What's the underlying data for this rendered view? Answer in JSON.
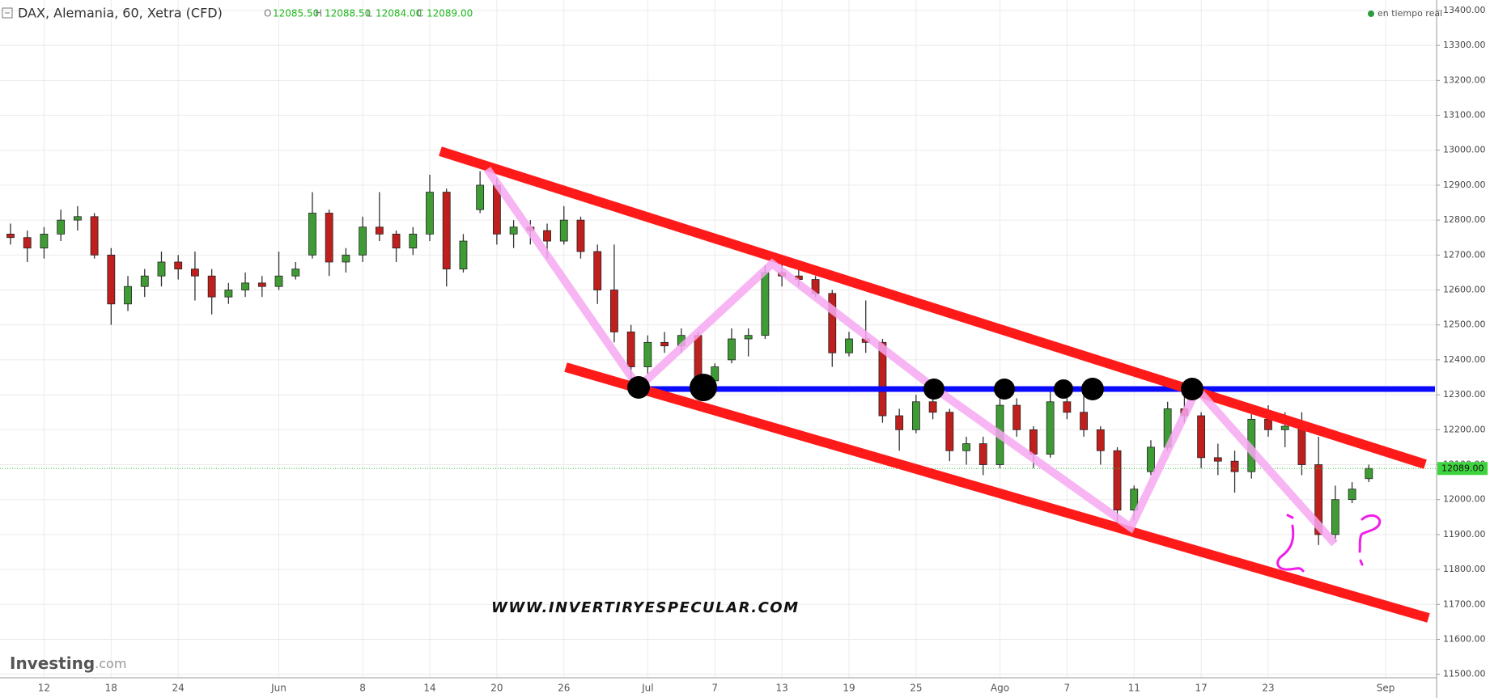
{
  "header": {
    "symbol": "DAX, Alemania, 60, Xetra (CFD)",
    "o_label": "O",
    "o": "12085.50",
    "h_label": "H",
    "h": "12088.50",
    "l_label": "L",
    "l": "12084.00",
    "c_label": "C",
    "c": "12089.00",
    "realtime": "en tiempo real"
  },
  "watermark": "WWW.INVERTIRYESPECULAR.COM",
  "logo": {
    "name": "Investing",
    "suffix": ".com"
  },
  "chart_data": {
    "type": "candlestick",
    "categories": [
      null,
      null,
      "12",
      null,
      null,
      null,
      "18",
      null,
      null,
      null,
      "24",
      null,
      null,
      null,
      null,
      null,
      "Jun",
      null,
      null,
      null,
      null,
      "8",
      null,
      null,
      null,
      "14",
      null,
      null,
      null,
      "20",
      null,
      null,
      null,
      "26",
      null,
      null,
      null,
      null,
      "Jul",
      null,
      null,
      null,
      "7",
      null,
      null,
      null,
      "13",
      null,
      null,
      null,
      "19",
      null,
      null,
      null,
      "25",
      null,
      null,
      null,
      null,
      "Ago",
      null,
      null,
      null,
      "7",
      null,
      null,
      null,
      "11",
      null,
      null,
      null,
      "17",
      null,
      null,
      null,
      "23",
      null,
      null,
      null,
      null,
      null,
      null,
      "Sep"
    ],
    "open": [
      12760,
      12750,
      12720,
      12760,
      12800,
      12810,
      12700,
      12560,
      12610,
      12640,
      12680,
      12660,
      12640,
      12580,
      12600,
      12620,
      12610,
      12640,
      12700,
      12820,
      12680,
      12700,
      12780,
      12760,
      12720,
      12760,
      12880,
      12660,
      12830,
      12900,
      12760,
      12780,
      12770,
      12740,
      12800,
      12710,
      12600,
      12480,
      12380,
      12450,
      12440,
      12470,
      12340,
      12400,
      12460,
      12470,
      12650,
      12640,
      12630,
      12590,
      12420,
      12460,
      12450,
      12240,
      12200,
      12280,
      12250,
      12140,
      12160,
      12100,
      12270,
      12200,
      12130,
      12280,
      12250,
      12200,
      12140,
      11970,
      12080,
      12150,
      12260,
      12240,
      12120,
      12110,
      12080,
      12230,
      12200,
      12210,
      12100,
      11900,
      12000,
      12060,
      null
    ],
    "high": [
      12790,
      12770,
      12780,
      12830,
      12840,
      12820,
      12720,
      12640,
      12660,
      12710,
      12700,
      12710,
      12660,
      12620,
      12650,
      12640,
      12710,
      12680,
      12880,
      12830,
      12720,
      12810,
      12880,
      12770,
      12780,
      12930,
      12890,
      12760,
      12940,
      12920,
      12800,
      12800,
      12790,
      12840,
      12810,
      12730,
      12730,
      12500,
      12470,
      12480,
      12490,
      12480,
      12390,
      12490,
      12490,
      12670,
      12680,
      12660,
      12640,
      12600,
      12480,
      12570,
      12460,
      12260,
      12300,
      12310,
      12260,
      12180,
      12180,
      12320,
      12290,
      12210,
      12310,
      12300,
      12310,
      12210,
      12150,
      12040,
      12170,
      12280,
      12310,
      12250,
      12160,
      12140,
      12250,
      12270,
      12250,
      12250,
      12180,
      12040,
      12050,
      12100,
      null
    ],
    "low": [
      12730,
      12680,
      12690,
      12740,
      12770,
      12690,
      12500,
      12540,
      12580,
      12610,
      12630,
      12570,
      12530,
      12560,
      12580,
      12580,
      12600,
      12630,
      12690,
      12640,
      12650,
      12680,
      12740,
      12680,
      12700,
      12740,
      12610,
      12650,
      12820,
      12730,
      12720,
      12730,
      12690,
      12730,
      12690,
      12560,
      12450,
      12310,
      12360,
      12420,
      12420,
      12310,
      12330,
      12390,
      12410,
      12460,
      12610,
      12610,
      12580,
      12380,
      12410,
      12420,
      12220,
      12140,
      12190,
      12230,
      12110,
      12100,
      12070,
      12090,
      12180,
      12090,
      12120,
      12230,
      12180,
      12100,
      11930,
      11940,
      12070,
      12140,
      12220,
      12090,
      12070,
      12020,
      12060,
      12180,
      12150,
      12070,
      11870,
      11880,
      11990,
      12050,
      null
    ],
    "close": [
      12750,
      12720,
      12760,
      12800,
      12810,
      12700,
      12560,
      12610,
      12640,
      12680,
      12660,
      12640,
      12580,
      12600,
      12620,
      12610,
      12640,
      12660,
      12820,
      12680,
      12700,
      12780,
      12760,
      12720,
      12760,
      12880,
      12660,
      12740,
      12900,
      12760,
      12780,
      12770,
      12740,
      12800,
      12710,
      12600,
      12480,
      12380,
      12450,
      12440,
      12470,
      12340,
      12380,
      12460,
      12470,
      12650,
      12640,
      12630,
      12590,
      12420,
      12460,
      12450,
      12240,
      12200,
      12280,
      12250,
      12140,
      12160,
      12100,
      12270,
      12200,
      12130,
      12280,
      12250,
      12200,
      12140,
      11970,
      12030,
      12150,
      12260,
      12240,
      12120,
      12110,
      12080,
      12230,
      12200,
      12210,
      12100,
      11900,
      12000,
      12030,
      12089,
      null
    ],
    "up_color": "#3f9c35",
    "down_color": "#c0201d",
    "ylim": [
      11490,
      13430
    ],
    "yticks": [
      {
        "value": 11500,
        "label": "11500.00"
      },
      {
        "value": 11600,
        "label": "11600.00"
      },
      {
        "value": 11700,
        "label": "11700.00"
      },
      {
        "value": 11800,
        "label": "11800.00"
      },
      {
        "value": 11900,
        "label": "11900.00"
      },
      {
        "value": 12000,
        "label": "12000.00"
      },
      {
        "value": 12100,
        "label": "12100.00"
      },
      {
        "value": 12200,
        "label": "12200.00"
      },
      {
        "value": 12300,
        "label": "12300.00"
      },
      {
        "value": 12400,
        "label": "12400.00"
      },
      {
        "value": 12500,
        "label": "12500.00"
      },
      {
        "value": 12600,
        "label": "12600.00"
      },
      {
        "value": 12700,
        "label": "12700.00"
      },
      {
        "value": 12800,
        "label": "12800.00"
      },
      {
        "value": 12900,
        "label": "12900.00"
      },
      {
        "value": 13000,
        "label": "13000.00"
      },
      {
        "value": 13100,
        "label": "13100.00"
      },
      {
        "value": 13200,
        "label": "13200.00"
      },
      {
        "value": 13300,
        "label": "13300.00"
      },
      {
        "value": 13400,
        "label": "13400.00"
      }
    ],
    "grid": true,
    "last_price": {
      "value": 12089,
      "label": "12089.00"
    }
  }
}
